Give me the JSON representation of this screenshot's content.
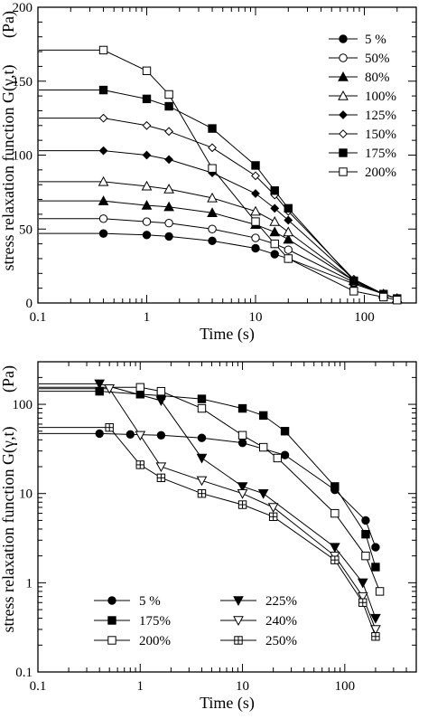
{
  "chart_data": [
    {
      "type": "line",
      "xscale": "log",
      "yscale": "linear",
      "xlim": [
        0.1,
        300
      ],
      "ylim": [
        0,
        200
      ],
      "xticks": [
        "0.1",
        "1",
        "10",
        "100"
      ],
      "yticks": [
        "0",
        "50",
        "100",
        "150",
        "200"
      ],
      "xlabel": "Time (s)",
      "ylabel": "stress relaxation function G(γ,t)",
      "yunit": "(Pa)",
      "legend_position": "top-right",
      "x": [
        0.4,
        1.0,
        1.6,
        4.0,
        10.0,
        15.0,
        20.0,
        80.0,
        150.0,
        200.0
      ],
      "series": [
        {
          "name": "5 %",
          "marker": "circle-filled",
          "values": [
            47,
            46,
            45,
            42,
            37,
            33,
            30,
            13,
            6,
            3
          ]
        },
        {
          "name": "50%",
          "marker": "circle-open",
          "values": [
            57,
            55,
            54,
            50,
            44,
            40,
            36,
            14,
            6,
            3
          ]
        },
        {
          "name": "80%",
          "marker": "triangle-filled",
          "values": [
            69,
            66,
            65,
            61,
            53,
            48,
            43,
            15,
            6,
            3
          ]
        },
        {
          "name": "100%",
          "marker": "triangle-open",
          "values": [
            82,
            79,
            77,
            71,
            62,
            55,
            48,
            15,
            6,
            3
          ]
        },
        {
          "name": "125%",
          "marker": "diamond-filled",
          "values": [
            103,
            100,
            97,
            88,
            74,
            64,
            56,
            16,
            6,
            3
          ]
        },
        {
          "name": "150%",
          "marker": "diamond-open",
          "values": [
            125,
            120,
            116,
            105,
            86,
            73,
            62,
            16,
            6,
            3
          ]
        },
        {
          "name": "175%",
          "marker": "square-filled",
          "values": [
            144,
            138,
            133,
            118,
            93,
            76,
            64,
            15,
            6,
            3
          ]
        },
        {
          "name": "200%",
          "marker": "square-open",
          "values": [
            171,
            157,
            141,
            91,
            55,
            40,
            30,
            8,
            4,
            2
          ]
        }
      ]
    },
    {
      "type": "line",
      "xscale": "log",
      "yscale": "log",
      "xlim": [
        0.1,
        500
      ],
      "ylim": [
        0.1,
        300
      ],
      "xticks": [
        "0.1",
        "1",
        "10",
        "100"
      ],
      "yticks": [
        "0.1",
        "1",
        "10",
        "100"
      ],
      "xlabel": "Time (s)",
      "ylabel": "stress relaxation function G(γ,t)",
      "yunit": "(Pa)",
      "legend_position": "bottom-left",
      "series": [
        {
          "name": "5 %",
          "marker": "circle-filled",
          "x": [
            0.4,
            0.8,
            1.6,
            4,
            10,
            26,
            80,
            160,
            200
          ],
          "values": [
            47,
            46,
            45,
            42,
            37,
            27,
            11,
            5,
            2.5
          ]
        },
        {
          "name": "175%",
          "marker": "square-filled",
          "x": [
            0.4,
            1.0,
            1.6,
            4,
            10,
            16,
            26,
            80,
            160,
            200
          ],
          "values": [
            140,
            130,
            125,
            115,
            90,
            75,
            50,
            12,
            3.5,
            1.5
          ]
        },
        {
          "name": "200%",
          "marker": "square-open",
          "x": [
            1.0,
            1.6,
            4,
            10,
            16,
            22,
            80,
            160,
            220
          ],
          "values": [
            155,
            140,
            90,
            45,
            33,
            25,
            6,
            2,
            0.8
          ]
        },
        {
          "name": "225%",
          "marker": "triangle-down-filled",
          "x": [
            0.4,
            1.6,
            4,
            10,
            16,
            80,
            150,
            200
          ],
          "values": [
            170,
            110,
            25,
            12,
            10,
            2.5,
            1.0,
            0.4
          ]
        },
        {
          "name": "240%",
          "marker": "triangle-down-open",
          "x": [
            0.5,
            1.0,
            1.6,
            4,
            10,
            20,
            80,
            150,
            200
          ],
          "values": [
            150,
            45,
            20,
            14,
            10,
            7,
            2,
            0.7,
            0.3
          ]
        },
        {
          "name": "250%",
          "marker": "square-crossed",
          "x": [
            0.5,
            1.0,
            1.6,
            4,
            10,
            20,
            80,
            150,
            200
          ],
          "values": [
            55,
            21,
            15,
            10,
            7.5,
            5.5,
            1.8,
            0.6,
            0.25
          ]
        }
      ]
    }
  ]
}
